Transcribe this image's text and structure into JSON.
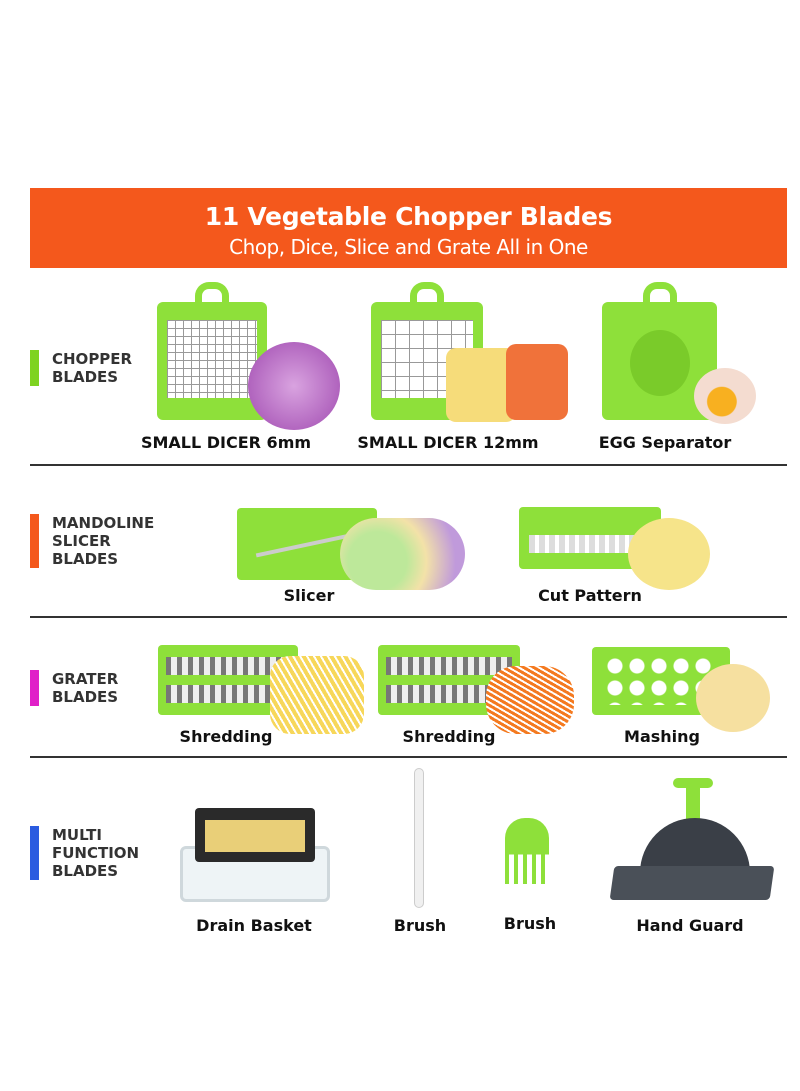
{
  "banner": {
    "title": "11 Vegetable Chopper Blades",
    "subtitle": "Chop, Dice, Slice and Grate All in One"
  },
  "colors": {
    "banner": "#F4581C",
    "blade_green": "#8EE03A",
    "chopper": "#7ED321",
    "mandoline": "#F4581C",
    "grater": "#E020C8",
    "multi": "#2B5BE0"
  },
  "sections": [
    {
      "label": [
        "CHOPPER",
        "BLADES"
      ],
      "items": [
        "SMALL DICER 6mm",
        "SMALL DICER 12mm",
        "EGG Separator"
      ]
    },
    {
      "label": [
        "MANDOLINE",
        "SLICER",
        "BLADES"
      ],
      "items": [
        "Slicer",
        "Cut Pattern"
      ]
    },
    {
      "label": [
        "GRATER",
        "BLADES"
      ],
      "items": [
        "Shredding",
        "Shredding",
        "Mashing"
      ]
    },
    {
      "label": [
        "MULTI",
        "FUNCTION",
        "BLADES"
      ],
      "items": [
        "Drain Basket",
        "Brush",
        "Brush",
        "Hand Guard"
      ]
    }
  ]
}
